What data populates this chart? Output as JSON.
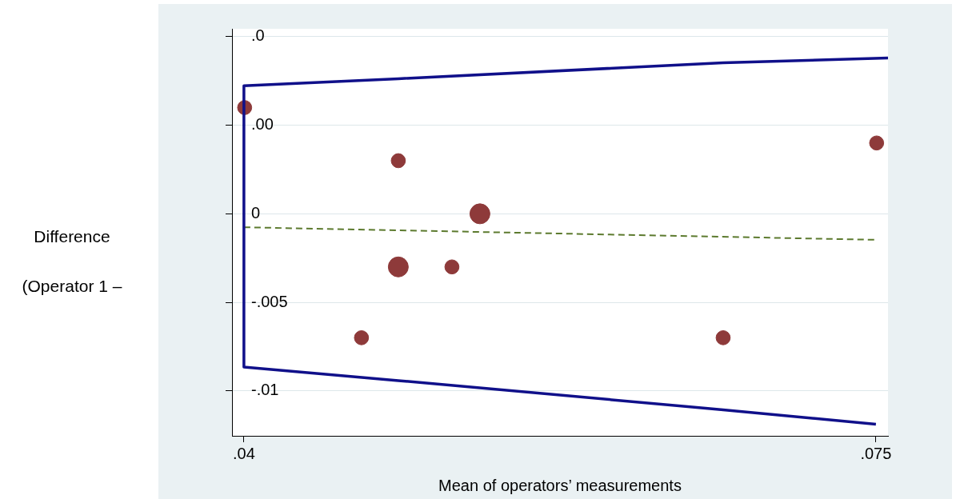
{
  "chart_data": {
    "type": "scatter",
    "xlabel": "Mean of operators’ measurements",
    "ylabel": "Difference (Operator 1 –",
    "xlim": [
      0.03934,
      0.07567
    ],
    "ylim": [
      -0.01254,
      0.01045
    ],
    "xticks": [
      {
        "value": 0.04,
        "label": ".04"
      },
      {
        "value": 0.075,
        "label": ".075"
      }
    ],
    "yticks": [
      {
        "value": 0.01,
        "label": ".0"
      },
      {
        "value": 0.005,
        "label": ".00"
      },
      0,
      {
        "value": -0.005,
        "label": "-.005"
      },
      {
        "value": -0.01,
        "label": "-.01"
      }
    ],
    "grid": "y",
    "legend": false,
    "series": [
      {
        "type": "line",
        "color": "#10108a",
        "x": [
          0.07567,
          0.06654,
          0.04855,
          0.04,
          0.04,
          0.04855,
          0.06654,
          0.075
        ],
        "values": [
          0.0088,
          0.00853,
          0.00763,
          0.00723,
          -0.00866,
          -0.00942,
          -0.01107,
          -0.01188
        ]
      },
      {
        "type": "line",
        "line_style": "dashed",
        "color": "#5c7a2e",
        "x": [
          0.04,
          0.075
        ],
        "values": [
          -0.00076,
          -0.00147
        ]
      },
      {
        "type": "bubble",
        "color": "#8e3a3a",
        "x": [
          0.04004,
          0.04855,
          0.05307,
          0.04855,
          0.05152,
          0.04651,
          0.06654,
          0.07504
        ],
        "values": [
          0.006,
          0.003,
          0,
          -0.003,
          -0.003,
          -0.007,
          -0.007,
          0.004
        ],
        "sizes": [
          0.5,
          0.5,
          1,
          1,
          0.5,
          0.5,
          0.5,
          0.5
        ]
      }
    ]
  }
}
